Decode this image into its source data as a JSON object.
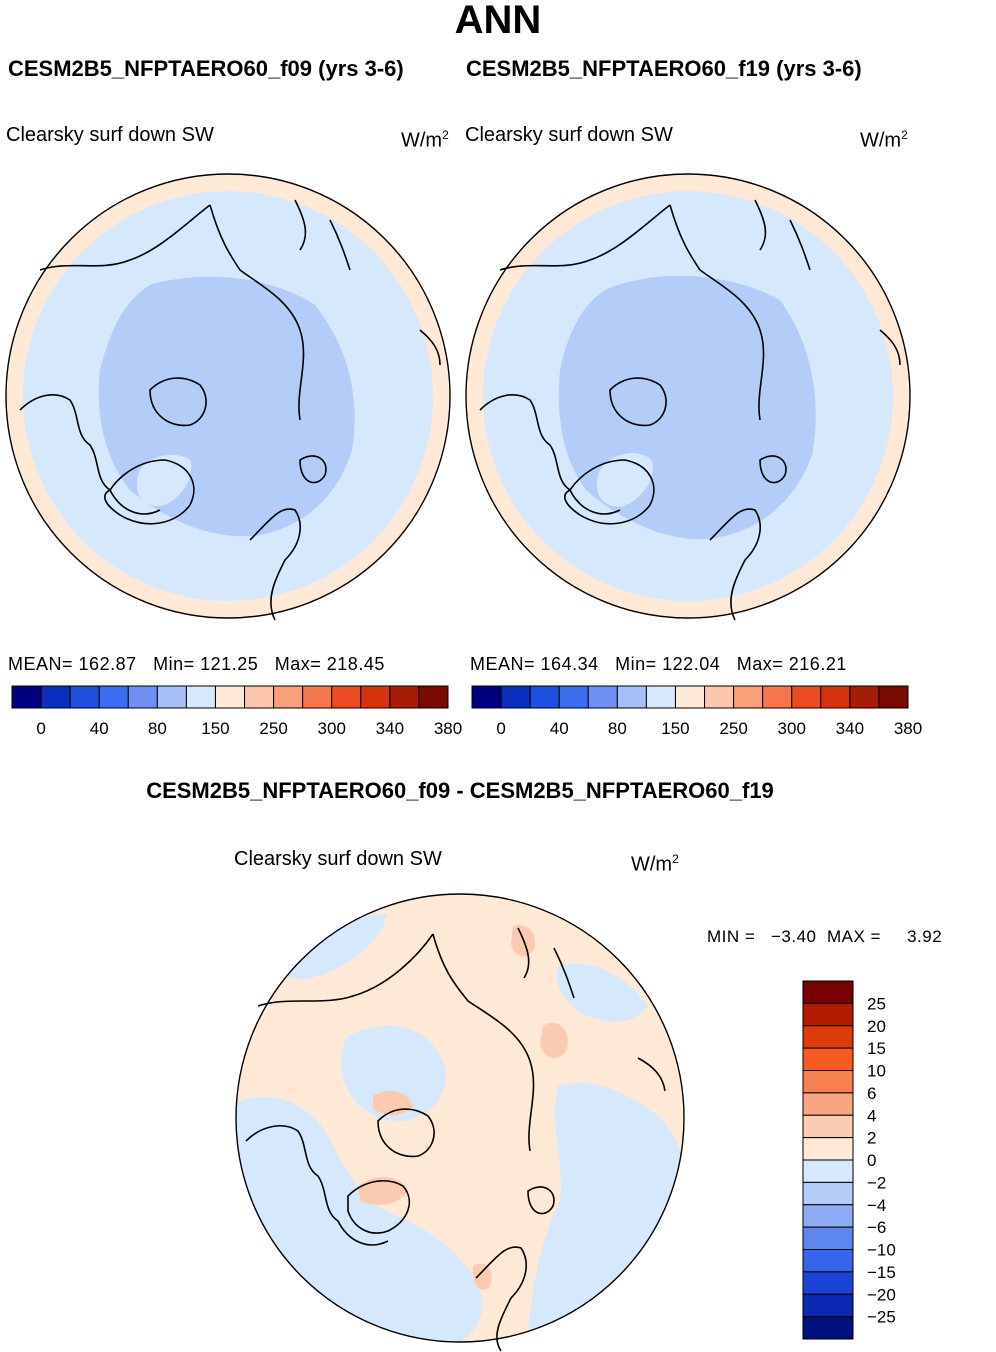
{
  "figure": {
    "title": "ANN"
  },
  "panels": [
    {
      "case_title": "CESM2B5_NFPTAERO60_f09 (yrs 3-6)",
      "variable_label": "Clearsky surf down SW",
      "units_base": "W/m",
      "units_exp": "2",
      "stats": {
        "mean_label": "MEAN=",
        "mean": "162.87",
        "min_label": "Min=",
        "min": "121.25",
        "max_label": "Max=",
        "max": "218.45"
      }
    },
    {
      "case_title": "CESM2B5_NFPTAERO60_f19 (yrs 3-6)",
      "variable_label": "Clearsky surf down SW",
      "units_base": "W/m",
      "units_exp": "2",
      "stats": {
        "mean_label": "MEAN=",
        "mean": "164.34",
        "min_label": "Min=",
        "min": "122.04",
        "max_label": "Max=",
        "max": "216.21"
      }
    }
  ],
  "colorbar_top": {
    "colors": [
      "#000080",
      "#0b2fbd",
      "#1d4fe0",
      "#3c6cf0",
      "#6e90f4",
      "#a6bff8",
      "#d6e8fb",
      "#fde9d6",
      "#fcc7aa",
      "#f9a07a",
      "#f6764c",
      "#ee4a20",
      "#d8330c",
      "#a51d05",
      "#7a0b02"
    ],
    "labels": [
      "0",
      "40",
      "80",
      "150",
      "250",
      "300",
      "340",
      "380"
    ]
  },
  "difference": {
    "title": "CESM2B5_NFPTAERO60_f09 - CESM2B5_NFPTAERO60_f19",
    "variable_label": "Clearsky surf down SW",
    "units_base": "W/m",
    "units_exp": "2",
    "min_label": "MIN =",
    "min": "−3.40",
    "max_label": "MAX =",
    "max": "3.92"
  },
  "colorbar_diff": {
    "colors": [
      "#7a0000",
      "#b31b00",
      "#dd3c0a",
      "#f65a1e",
      "#f7804f",
      "#f8a583",
      "#fbcbb1",
      "#fde9d6",
      "#d6e8fb",
      "#b4ccf8",
      "#8dacf4",
      "#5d86f0",
      "#3664ea",
      "#1a43d6",
      "#0b28b4",
      "#00107f"
    ],
    "labels": [
      "25",
      "20",
      "15",
      "10",
      "6",
      "4",
      "2",
      "0",
      "−2",
      "−4",
      "−6",
      "−10",
      "−15",
      "−20",
      "−25"
    ]
  },
  "map_colors": {
    "outer": "#fde9d6",
    "light_blue": "#d6e8fb",
    "mid_blue": "#b4ccf8",
    "diff_orange": "#fde9d6",
    "diff_blue": "#d6e8fb",
    "diff_peach": "#fbcbb1"
  }
}
